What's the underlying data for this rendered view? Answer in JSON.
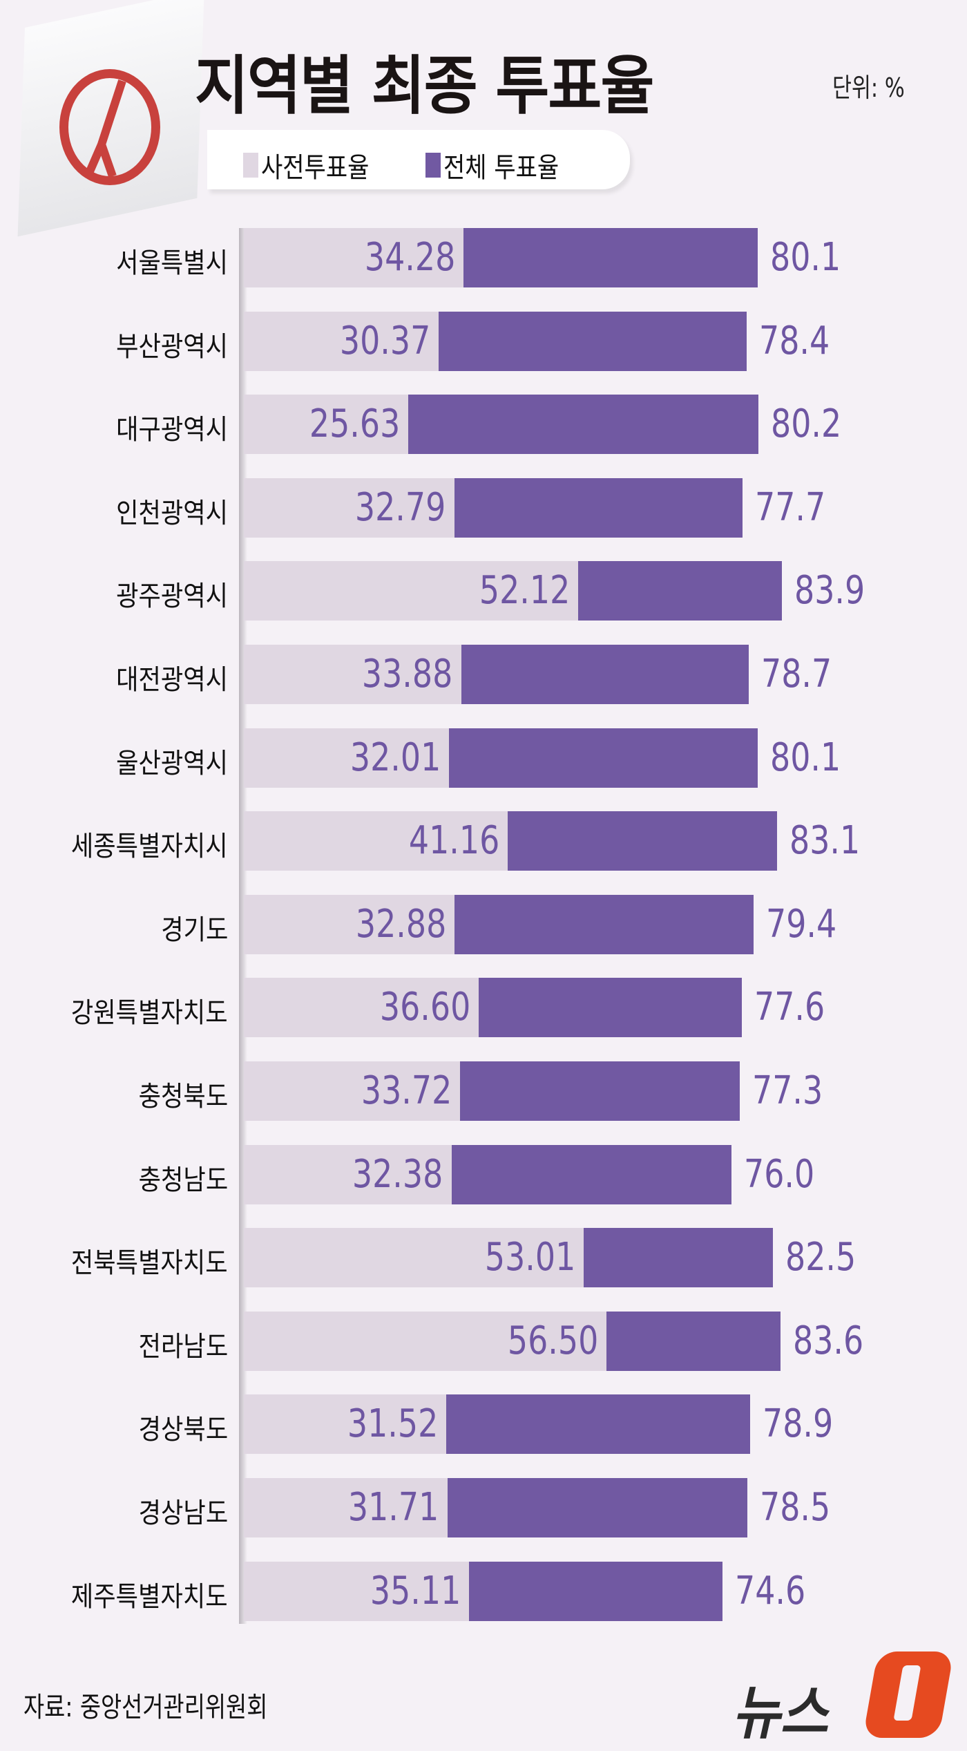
{
  "title": "지역별 최종 투표율",
  "unit": "단위: %",
  "source": "자료: 중앙선거관리위원회",
  "logo": "뉴스1",
  "colors": {
    "early": "#e0d7e2",
    "total": "#7159a2",
    "value_text": "#6e56a2",
    "stamp": "#c8413d",
    "logo_accent": "#e64a20"
  },
  "chart_data": {
    "type": "bar",
    "orientation": "horizontal",
    "overlay": true,
    "title": "지역별 최종 투표율",
    "xlim": [
      0,
      100
    ],
    "legend_position": "top",
    "grid": false,
    "categories": [
      "서울특별시",
      "부산광역시",
      "대구광역시",
      "인천광역시",
      "광주광역시",
      "대전광역시",
      "울산광역시",
      "세종특별자치시",
      "경기도",
      "강원특별자치도",
      "충청북도",
      "충청남도",
      "전북특별자치도",
      "전라남도",
      "경상북도",
      "경상남도",
      "제주특별자치도"
    ],
    "series": [
      {
        "name": "사전투표율",
        "values": [
          "34.28",
          "30.37",
          "25.63",
          "32.79",
          "52.12",
          "33.88",
          "32.01",
          "41.16",
          "32.88",
          "36.60",
          "33.72",
          "32.38",
          "53.01",
          "56.50",
          "31.52",
          "31.71",
          "35.11"
        ]
      },
      {
        "name": "전체 투표율",
        "values": [
          "80.1",
          "78.4",
          "80.2",
          "77.7",
          "83.9",
          "78.7",
          "80.1",
          "83.1",
          "79.4",
          "77.6",
          "77.3",
          "76.0",
          "82.5",
          "83.6",
          "78.9",
          "78.5",
          "74.6"
        ]
      }
    ]
  }
}
